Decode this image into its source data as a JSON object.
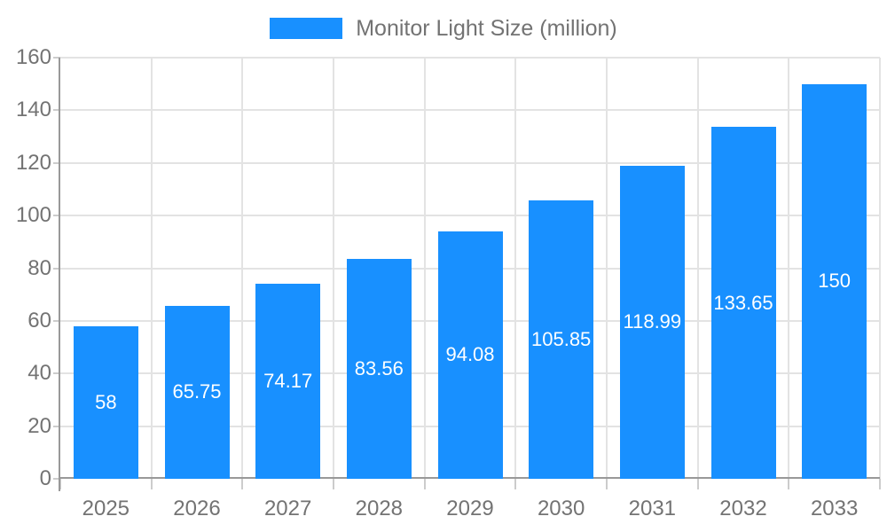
{
  "legend": {
    "items": [
      {
        "label": "Monitor Light Size (million)",
        "color": "#1890ff"
      }
    ]
  },
  "chart_data": {
    "type": "bar",
    "title": "Monitor Light Size (million)",
    "series_name": "Monitor Light Size (million)",
    "categories": [
      "2025",
      "2026",
      "2027",
      "2028",
      "2029",
      "2030",
      "2031",
      "2032",
      "2033"
    ],
    "values": [
      58,
      65.75,
      74.17,
      83.56,
      94.08,
      105.85,
      118.99,
      133.65,
      150
    ],
    "value_labels": [
      "58",
      "65.75",
      "74.17",
      "83.56",
      "94.08",
      "105.85",
      "118.99",
      "133.65",
      "150"
    ],
    "xlabel": "",
    "ylabel": "",
    "ylim": [
      0,
      160
    ],
    "ytick_step": 20,
    "yticks": [
      0,
      20,
      40,
      60,
      80,
      100,
      120,
      140,
      160
    ],
    "grid": true,
    "vertical_grid": true,
    "legend_position": "top-center",
    "bar_color": "#1890ff",
    "bar_label_color": "#ffffff",
    "axis_text_color": "#737373",
    "grid_color": "#e3e3e3",
    "tick_color": "#cccccc",
    "axis_line_color": "#999999",
    "background_color": "#ffffff"
  }
}
